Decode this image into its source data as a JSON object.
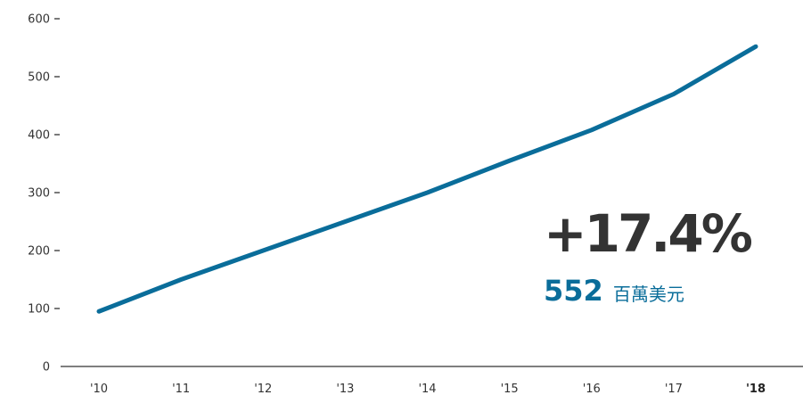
{
  "colors": {
    "series": "#0a6d9a",
    "axis": "#333333",
    "callout_pct": "#333333",
    "callout_value": "#0a6d9a"
  },
  "chart_data": {
    "type": "line",
    "title": "",
    "xlabel": "",
    "ylabel": "",
    "categories": [
      "'10",
      "'11",
      "'12",
      "'13",
      "'14",
      "'15",
      "'16",
      "'17",
      "'18"
    ],
    "highlight_category": "'18",
    "series": [
      {
        "values": [
          95,
          150,
          200,
          250,
          300,
          355,
          408,
          470,
          552
        ]
      }
    ],
    "ylim": [
      0,
      600
    ],
    "yticks": [
      0,
      100,
      200,
      300,
      400,
      500,
      600
    ],
    "grid": false,
    "legend": "none"
  },
  "callout": {
    "pct": "+17.4%",
    "value": "552",
    "unit": "百萬美元"
  }
}
